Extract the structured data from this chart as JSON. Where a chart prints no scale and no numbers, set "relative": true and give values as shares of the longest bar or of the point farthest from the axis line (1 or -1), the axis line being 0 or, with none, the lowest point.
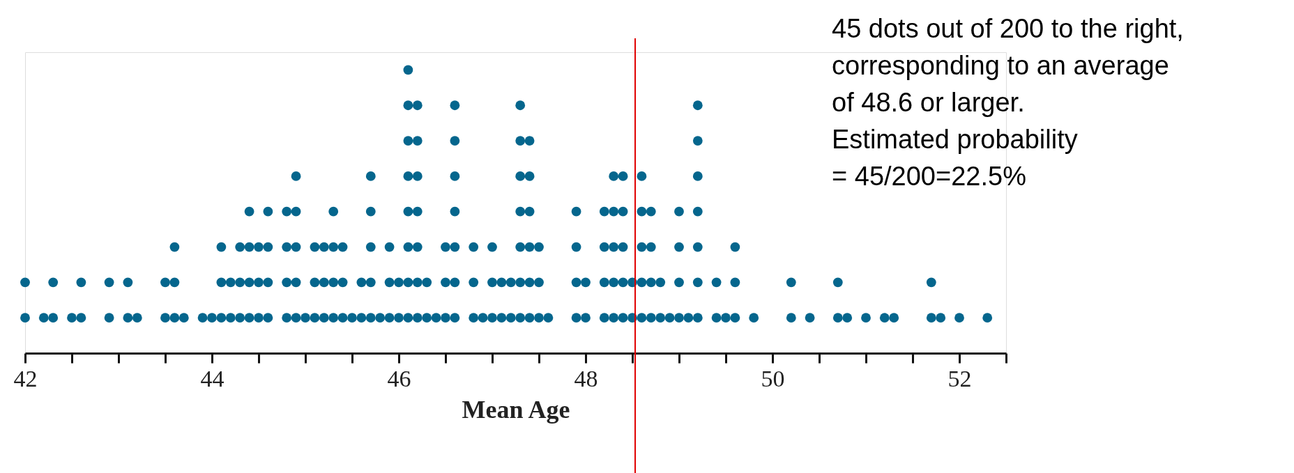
{
  "chart_data": {
    "type": "scatter",
    "xlabel": "Mean Age",
    "series": [
      {
        "color": "#05668d",
        "x": [
          42.0,
          42.2,
          42.3,
          42.5,
          42.6,
          42.9,
          43.1,
          43.2,
          43.5,
          43.6,
          43.7,
          43.9,
          44.0,
          44.1,
          44.2,
          44.3,
          44.4,
          44.5,
          44.6,
          44.8,
          44.9,
          45.0,
          45.1,
          45.2,
          45.3,
          45.4,
          45.5,
          45.6,
          45.7,
          45.8,
          45.9,
          46.0,
          46.1,
          46.2,
          46.3,
          46.4,
          46.5,
          46.6,
          46.8,
          46.9,
          47.0,
          47.1,
          47.2,
          47.3,
          47.4,
          47.5,
          47.6,
          47.9,
          48.0,
          48.2,
          48.3,
          48.4,
          48.5,
          48.6,
          48.7,
          48.8,
          48.9,
          49.0,
          49.1,
          49.2,
          49.4,
          49.5,
          49.6,
          49.8,
          50.2,
          50.4,
          50.7,
          50.8,
          51.0,
          51.2,
          51.3,
          51.7,
          51.8,
          52.0,
          52.3,
          42.0,
          42.3,
          42.6,
          42.9,
          43.1,
          43.5,
          43.6,
          44.1,
          44.2,
          44.3,
          44.4,
          44.5,
          44.6,
          44.8,
          44.9,
          45.1,
          45.2,
          45.3,
          45.4,
          45.6,
          45.7,
          45.9,
          46.0,
          46.1,
          46.2,
          46.3,
          46.5,
          46.6,
          46.8,
          47.0,
          47.1,
          47.2,
          47.3,
          47.4,
          47.5,
          47.9,
          48.0,
          48.2,
          48.3,
          48.4,
          48.5,
          48.6,
          48.7,
          48.8,
          49.0,
          49.2,
          49.4,
          49.6,
          50.2,
          50.7,
          51.7,
          43.6,
          44.1,
          44.3,
          44.4,
          44.5,
          44.6,
          44.8,
          44.9,
          45.1,
          45.2,
          45.3,
          45.4,
          45.7,
          45.9,
          46.1,
          46.2,
          46.5,
          46.6,
          46.8,
          47.0,
          47.3,
          47.4,
          47.5,
          47.9,
          48.2,
          48.3,
          48.4,
          48.6,
          48.7,
          49.0,
          49.2,
          49.6,
          44.4,
          44.6,
          44.8,
          44.9,
          45.3,
          45.7,
          46.1,
          46.2,
          46.6,
          47.3,
          47.4,
          47.9,
          48.2,
          48.3,
          48.4,
          48.6,
          48.7,
          49.0,
          49.2,
          44.9,
          45.7,
          46.1,
          46.2,
          46.6,
          47.3,
          47.4,
          48.3,
          48.4,
          48.6,
          49.2,
          46.1,
          46.2,
          46.6,
          47.3,
          47.4,
          49.2,
          46.1,
          46.2,
          46.6,
          47.3,
          49.2,
          46.1
        ],
        "values": [
          0.125,
          0.125,
          0.125,
          0.125,
          0.125,
          0.125,
          0.125,
          0.125,
          0.125,
          0.125,
          0.125,
          0.125,
          0.125,
          0.125,
          0.125,
          0.125,
          0.125,
          0.125,
          0.125,
          0.125,
          0.125,
          0.125,
          0.125,
          0.125,
          0.125,
          0.125,
          0.125,
          0.125,
          0.125,
          0.125,
          0.125,
          0.125,
          0.125,
          0.125,
          0.125,
          0.125,
          0.125,
          0.125,
          0.125,
          0.125,
          0.125,
          0.125,
          0.125,
          0.125,
          0.125,
          0.125,
          0.125,
          0.125,
          0.125,
          0.125,
          0.125,
          0.125,
          0.125,
          0.125,
          0.125,
          0.125,
          0.125,
          0.125,
          0.125,
          0.125,
          0.125,
          0.125,
          0.125,
          0.125,
          0.125,
          0.125,
          0.125,
          0.125,
          0.125,
          0.125,
          0.125,
          0.125,
          0.125,
          0.125,
          0.125,
          0.25,
          0.25,
          0.25,
          0.25,
          0.25,
          0.25,
          0.25,
          0.25,
          0.25,
          0.25,
          0.25,
          0.25,
          0.25,
          0.25,
          0.25,
          0.25,
          0.25,
          0.25,
          0.25,
          0.25,
          0.25,
          0.25,
          0.25,
          0.25,
          0.25,
          0.25,
          0.25,
          0.25,
          0.25,
          0.25,
          0.25,
          0.25,
          0.25,
          0.25,
          0.25,
          0.25,
          0.25,
          0.25,
          0.25,
          0.25,
          0.25,
          0.25,
          0.25,
          0.25,
          0.25,
          0.25,
          0.25,
          0.25,
          0.25,
          0.25,
          0.25,
          0.375,
          0.375,
          0.375,
          0.375,
          0.375,
          0.375,
          0.375,
          0.375,
          0.375,
          0.375,
          0.375,
          0.375,
          0.375,
          0.375,
          0.375,
          0.375,
          0.375,
          0.375,
          0.375,
          0.375,
          0.375,
          0.375,
          0.375,
          0.375,
          0.375,
          0.375,
          0.375,
          0.375,
          0.375,
          0.375,
          0.375,
          0.375,
          0.5,
          0.5,
          0.5,
          0.5,
          0.5,
          0.5,
          0.5,
          0.5,
          0.5,
          0.5,
          0.5,
          0.5,
          0.5,
          0.5,
          0.5,
          0.5,
          0.5,
          0.5,
          0.5,
          0.625,
          0.625,
          0.625,
          0.625,
          0.625,
          0.625,
          0.625,
          0.625,
          0.625,
          0.625,
          0.625,
          0.75,
          0.75,
          0.75,
          0.75,
          0.75,
          0.75,
          0.875,
          0.875,
          0.875,
          0.875,
          0.875,
          1
        ]
      }
    ],
    "xlim": [
      42,
      52.5
    ],
    "xticks": [
      42,
      {
        "value": 42.5,
        "label": null
      },
      {
        "value": 43,
        "label": null
      },
      {
        "value": 43.5,
        "label": null
      },
      44,
      {
        "value": 44.5,
        "label": null
      },
      {
        "value": 45,
        "label": null
      },
      {
        "value": 45.5,
        "label": null
      },
      46,
      {
        "value": 46.5,
        "label": null
      },
      {
        "value": 47,
        "label": null
      },
      {
        "value": 47.5,
        "label": null
      },
      48,
      {
        "value": 48.5,
        "label": null
      },
      {
        "value": 49,
        "label": null
      },
      {
        "value": 49.5,
        "label": null
      },
      50,
      {
        "value": 50.5,
        "label": null
      },
      {
        "value": 51,
        "label": null
      },
      {
        "value": 51.5,
        "label": null
      },
      52,
      {
        "value": 52.5,
        "label": null
      }
    ],
    "relative": true,
    "tick_labels": "x",
    "grid": false,
    "marker": "circle",
    "ref_lines": [
      {
        "axis": "x",
        "value": 48.53,
        "color": "#e00000"
      }
    ],
    "annotations": [
      "45 dots out of 200 to the right,\ncorresponding to an average\nof 48.6 or larger.\nEstimated probability\n= 45/200=22.5%"
    ]
  }
}
